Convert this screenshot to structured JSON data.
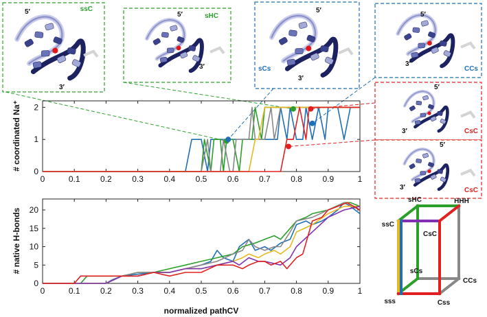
{
  "chart_data": [
    {
      "type": "line",
      "ylabel": "# coordinated Na⁺",
      "xlabel": "",
      "xlim": [
        0,
        1
      ],
      "ylim": [
        0,
        2.2
      ],
      "xticks": [
        "0",
        "0.1",
        "0.2",
        "0.3",
        "0.4",
        "0.5",
        "0.6",
        "0.7",
        "0.8",
        "0.9",
        "1"
      ],
      "yticks": [
        "0",
        "1",
        "2"
      ],
      "series": [
        {
          "color": "#1f6fb5",
          "points": [
            [
              0,
              0
            ],
            [
              0.45,
              0
            ],
            [
              0.47,
              1
            ],
            [
              0.5,
              1
            ],
            [
              0.52,
              0
            ],
            [
              0.53,
              1
            ],
            [
              0.6,
              1
            ],
            [
              0.62,
              1
            ],
            [
              0.65,
              1
            ],
            [
              0.68,
              1
            ],
            [
              0.7,
              1
            ],
            [
              0.72,
              1
            ],
            [
              0.74,
              1
            ],
            [
              0.75,
              2
            ],
            [
              0.77,
              1
            ],
            [
              0.78,
              2
            ],
            [
              0.8,
              1
            ],
            [
              0.82,
              1
            ],
            [
              0.83,
              2
            ],
            [
              0.85,
              1
            ],
            [
              0.87,
              2
            ],
            [
              0.89,
              1
            ],
            [
              0.9,
              2
            ],
            [
              0.93,
              2
            ],
            [
              0.95,
              1
            ],
            [
              0.97,
              2
            ],
            [
              1,
              2
            ]
          ]
        },
        {
          "color": "#2aa02a",
          "points": [
            [
              0,
              0
            ],
            [
              0.5,
              0
            ],
            [
              0.51,
              1
            ],
            [
              0.53,
              0
            ],
            [
              0.54,
              1
            ],
            [
              0.56,
              1
            ],
            [
              0.57,
              0
            ],
            [
              0.58,
              1
            ],
            [
              0.6,
              1
            ],
            [
              0.62,
              0
            ],
            [
              0.63,
              1
            ],
            [
              0.66,
              1
            ],
            [
              0.67,
              2
            ],
            [
              0.69,
              1
            ],
            [
              0.7,
              2
            ],
            [
              0.72,
              2
            ],
            [
              0.74,
              2
            ],
            [
              0.76,
              2
            ],
            [
              0.78,
              2
            ],
            [
              0.8,
              2
            ],
            [
              0.83,
              2
            ],
            [
              0.86,
              2
            ],
            [
              0.9,
              2
            ],
            [
              0.95,
              2
            ],
            [
              1,
              2
            ]
          ]
        },
        {
          "color": "#888888",
          "points": [
            [
              0,
              0
            ],
            [
              0.5,
              0
            ],
            [
              0.52,
              1
            ],
            [
              0.53,
              0
            ],
            [
              0.54,
              0
            ],
            [
              0.56,
              0
            ],
            [
              0.57,
              1
            ],
            [
              0.59,
              0
            ],
            [
              0.6,
              0
            ],
            [
              0.61,
              1
            ],
            [
              0.63,
              1
            ],
            [
              0.65,
              1
            ],
            [
              0.66,
              2
            ],
            [
              0.67,
              1
            ],
            [
              0.7,
              1
            ],
            [
              0.72,
              2
            ],
            [
              0.73,
              1
            ],
            [
              0.75,
              2
            ],
            [
              0.78,
              2
            ],
            [
              0.82,
              2
            ],
            [
              0.85,
              2
            ],
            [
              0.9,
              2
            ],
            [
              0.95,
              2
            ],
            [
              1,
              2
            ]
          ]
        },
        {
          "color": "#e8b820",
          "points": [
            [
              0,
              0
            ],
            [
              0.65,
              0
            ],
            [
              0.67,
              1
            ],
            [
              0.68,
              1
            ],
            [
              0.7,
              2
            ],
            [
              0.72,
              2
            ],
            [
              0.78,
              2
            ],
            [
              0.84,
              2
            ],
            [
              0.9,
              2
            ],
            [
              1,
              2
            ]
          ]
        },
        {
          "color": "#e02020",
          "points": [
            [
              0,
              0
            ],
            [
              0.73,
              0
            ],
            [
              0.75,
              0
            ],
            [
              0.77,
              1
            ],
            [
              0.79,
              1
            ],
            [
              0.81,
              2
            ],
            [
              0.83,
              1
            ],
            [
              0.84,
              2
            ],
            [
              0.86,
              2
            ],
            [
              0.88,
              2
            ],
            [
              0.92,
              2
            ],
            [
              0.96,
              2
            ],
            [
              1,
              2
            ]
          ]
        }
      ],
      "markers": [
        {
          "label": "ssC",
          "x": 0.58,
          "y": 0.95,
          "color": "#2aa02a"
        },
        {
          "label": "sCs",
          "x": 0.585,
          "y": 1.0,
          "color": "#1f6fb5"
        },
        {
          "label": "sHC",
          "x": 0.79,
          "y": 1.95,
          "color": "#2aa02a"
        },
        {
          "label": "CsC",
          "x": 0.775,
          "y": 0.78,
          "color": "#e02020"
        },
        {
          "label": "CCs",
          "x": 0.845,
          "y": 1.95,
          "color": "#e02020"
        },
        {
          "label": "CsC2",
          "x": 0.85,
          "y": 1.5,
          "color": "#1f6fb5"
        }
      ]
    },
    {
      "type": "line",
      "ylabel": "# native H-bonds",
      "xlabel": "normalized pathCV",
      "xlim": [
        0,
        1
      ],
      "ylim": [
        0,
        23
      ],
      "xticks": [
        "0",
        "0.1",
        "0.2",
        "0.3",
        "0.4",
        "0.5",
        "0.6",
        "0.7",
        "0.8",
        "0.9",
        "1"
      ],
      "yticks": [
        "0",
        "5",
        "10",
        "15",
        "20"
      ],
      "series": [
        {
          "color": "#1f6fb5",
          "points": [
            [
              0,
              0
            ],
            [
              0.2,
              0
            ],
            [
              0.22,
              1
            ],
            [
              0.25,
              2
            ],
            [
              0.3,
              2.5
            ],
            [
              0.35,
              3
            ],
            [
              0.4,
              3
            ],
            [
              0.45,
              4
            ],
            [
              0.5,
              5
            ],
            [
              0.53,
              6
            ],
            [
              0.55,
              9
            ],
            [
              0.57,
              7
            ],
            [
              0.6,
              6
            ],
            [
              0.62,
              10
            ],
            [
              0.65,
              12
            ],
            [
              0.67,
              9
            ],
            [
              0.7,
              10
            ],
            [
              0.72,
              9
            ],
            [
              0.75,
              11
            ],
            [
              0.78,
              12
            ],
            [
              0.8,
              16
            ],
            [
              0.83,
              17
            ],
            [
              0.85,
              16
            ],
            [
              0.88,
              17
            ],
            [
              0.9,
              18
            ],
            [
              0.93,
              20
            ],
            [
              0.95,
              22
            ],
            [
              0.97,
              21
            ],
            [
              1,
              19
            ]
          ]
        },
        {
          "color": "#2aa02a",
          "points": [
            [
              0,
              0
            ],
            [
              0.12,
              0
            ],
            [
              0.14,
              2
            ],
            [
              0.2,
              2
            ],
            [
              0.25,
              2
            ],
            [
              0.3,
              3
            ],
            [
              0.35,
              3
            ],
            [
              0.4,
              4
            ],
            [
              0.45,
              5
            ],
            [
              0.5,
              6
            ],
            [
              0.55,
              7
            ],
            [
              0.6,
              8
            ],
            [
              0.63,
              10
            ],
            [
              0.67,
              11
            ],
            [
              0.7,
              12
            ],
            [
              0.73,
              13
            ],
            [
              0.75,
              12
            ],
            [
              0.78,
              15
            ],
            [
              0.8,
              17
            ],
            [
              0.83,
              18
            ],
            [
              0.85,
              19
            ],
            [
              0.9,
              20
            ],
            [
              0.95,
              22
            ],
            [
              0.97,
              22
            ],
            [
              1,
              21
            ]
          ]
        },
        {
          "color": "#888888",
          "points": [
            [
              0,
              0
            ],
            [
              0.2,
              0
            ],
            [
              0.25,
              2
            ],
            [
              0.3,
              3
            ],
            [
              0.35,
              3
            ],
            [
              0.4,
              3
            ],
            [
              0.45,
              4
            ],
            [
              0.5,
              5
            ],
            [
              0.55,
              6
            ],
            [
              0.6,
              8
            ],
            [
              0.63,
              9
            ],
            [
              0.65,
              12
            ],
            [
              0.67,
              10
            ],
            [
              0.7,
              9
            ],
            [
              0.73,
              10
            ],
            [
              0.75,
              10
            ],
            [
              0.78,
              14
            ],
            [
              0.8,
              17
            ],
            [
              0.85,
              18
            ],
            [
              0.9,
              20
            ],
            [
              0.95,
              22
            ],
            [
              1,
              20
            ]
          ]
        },
        {
          "color": "#e8b820",
          "points": [
            [
              0,
              0
            ],
            [
              0.2,
              0
            ],
            [
              0.25,
              2
            ],
            [
              0.3,
              2
            ],
            [
              0.35,
              3
            ],
            [
              0.4,
              3
            ],
            [
              0.45,
              4
            ],
            [
              0.5,
              4
            ],
            [
              0.55,
              5
            ],
            [
              0.6,
              6
            ],
            [
              0.63,
              7
            ],
            [
              0.65,
              8
            ],
            [
              0.68,
              7
            ],
            [
              0.7,
              8
            ],
            [
              0.73,
              9
            ],
            [
              0.75,
              8
            ],
            [
              0.78,
              10
            ],
            [
              0.8,
              14
            ],
            [
              0.85,
              16
            ],
            [
              0.9,
              19
            ],
            [
              0.95,
              21
            ],
            [
              1,
              21
            ]
          ]
        },
        {
          "color": "#8030b0",
          "points": [
            [
              0,
              0
            ],
            [
              0.2,
              0
            ],
            [
              0.25,
              2
            ],
            [
              0.3,
              2
            ],
            [
              0.35,
              3
            ],
            [
              0.4,
              3
            ],
            [
              0.45,
              4
            ],
            [
              0.5,
              4
            ],
            [
              0.55,
              5
            ],
            [
              0.6,
              6
            ],
            [
              0.62,
              5
            ],
            [
              0.65,
              7
            ],
            [
              0.68,
              6
            ],
            [
              0.7,
              6
            ],
            [
              0.75,
              5
            ],
            [
              0.78,
              7
            ],
            [
              0.8,
              10
            ],
            [
              0.85,
              14
            ],
            [
              0.9,
              18
            ],
            [
              0.95,
              20
            ],
            [
              1,
              21
            ]
          ]
        },
        {
          "color": "#e02020",
          "points": [
            [
              0,
              0
            ],
            [
              0.1,
              0
            ],
            [
              0.12,
              2
            ],
            [
              0.2,
              2
            ],
            [
              0.25,
              2
            ],
            [
              0.3,
              2
            ],
            [
              0.35,
              3
            ],
            [
              0.4,
              2
            ],
            [
              0.45,
              3
            ],
            [
              0.5,
              3
            ],
            [
              0.55,
              5
            ],
            [
              0.6,
              5
            ],
            [
              0.63,
              4
            ],
            [
              0.65,
              5
            ],
            [
              0.68,
              6
            ],
            [
              0.7,
              6
            ],
            [
              0.72,
              5
            ],
            [
              0.75,
              6
            ],
            [
              0.77,
              4
            ],
            [
              0.8,
              7
            ],
            [
              0.82,
              8
            ],
            [
              0.85,
              17
            ],
            [
              0.88,
              18
            ],
            [
              0.9,
              20
            ],
            [
              0.93,
              21
            ],
            [
              0.96,
              22
            ],
            [
              0.98,
              21
            ],
            [
              1,
              20
            ]
          ]
        }
      ]
    }
  ],
  "panels": [
    {
      "state": "ssC",
      "color": "#2aa02a"
    },
    {
      "state": "sHC",
      "color": "#2aa02a"
    },
    {
      "state": "sCs",
      "color": "#1f6fb5"
    },
    {
      "state": "CCs",
      "color": "#1f6fb5"
    },
    {
      "state": "CsC",
      "color": "#e02020"
    },
    {
      "state": "CsC",
      "color": "#e02020"
    }
  ],
  "prime_labels": {
    "five": "5′",
    "three": "3′"
  },
  "cube": {
    "labels": [
      "sHC",
      "HHH",
      "ssC",
      "CsC",
      "sCs",
      "CCs",
      "sss",
      "Css"
    ],
    "edge_colors": {
      "green": "#2aa02a",
      "purple": "#8030b0",
      "yellow": "#e8b820",
      "red": "#e02020",
      "blue": "#1f6fb5",
      "gray": "#888888"
    }
  }
}
